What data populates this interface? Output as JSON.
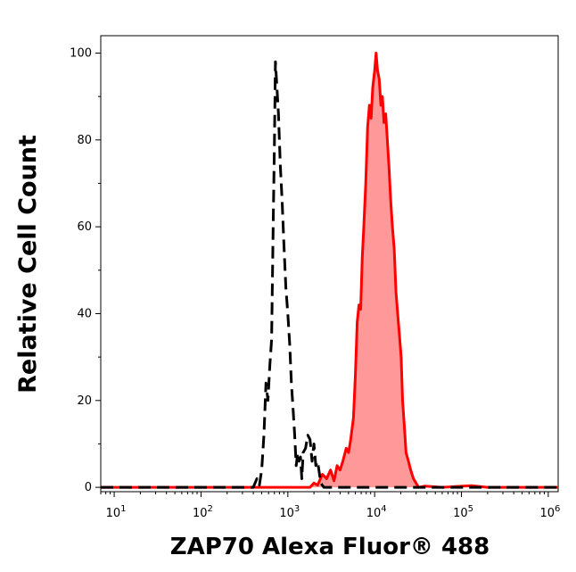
{
  "chart_data": {
    "type": "area",
    "title": "",
    "xlabel": "ZAP70 Alexa Fluor® 488",
    "ylabel": "Relative Cell Count",
    "x_scale": "log",
    "xlim": [
      7,
      1300000
    ],
    "ylim": [
      -1,
      104
    ],
    "y_ticks": [
      0,
      20,
      40,
      60,
      80,
      100
    ],
    "x_ticks": [
      {
        "value": 10,
        "base": "10",
        "exp": "1"
      },
      {
        "value": 100,
        "base": "10",
        "exp": "2"
      },
      {
        "value": 1000,
        "base": "10",
        "exp": "3"
      },
      {
        "value": 10000,
        "base": "10",
        "exp": "4"
      },
      {
        "value": 100000,
        "base": "10",
        "exp": "5"
      },
      {
        "value": 1000000,
        "base": "10",
        "exp": "6"
      }
    ],
    "grid": false,
    "series": [
      {
        "style": "dashed",
        "color": "#000000",
        "fill": "none",
        "points": [
          [
            7,
            0
          ],
          [
            300,
            0
          ],
          [
            400,
            0
          ],
          [
            440,
            2
          ],
          [
            470,
            0.5
          ],
          [
            500,
            4
          ],
          [
            530,
            12
          ],
          [
            560,
            24
          ],
          [
            590,
            20
          ],
          [
            620,
            28
          ],
          [
            650,
            34
          ],
          [
            680,
            62
          ],
          [
            700,
            78
          ],
          [
            720,
            98
          ],
          [
            750,
            92
          ],
          [
            780,
            86
          ],
          [
            820,
            74
          ],
          [
            860,
            66
          ],
          [
            900,
            56
          ],
          [
            950,
            46
          ],
          [
            1000,
            40
          ],
          [
            1050,
            33
          ],
          [
            1100,
            24
          ],
          [
            1150,
            18
          ],
          [
            1200,
            12
          ],
          [
            1250,
            5
          ],
          [
            1300,
            8
          ],
          [
            1350,
            6
          ],
          [
            1400,
            7
          ],
          [
            1450,
            2
          ],
          [
            1500,
            8
          ],
          [
            1600,
            9
          ],
          [
            1700,
            12
          ],
          [
            1800,
            11
          ],
          [
            1900,
            6
          ],
          [
            2000,
            10
          ],
          [
            2100,
            5
          ],
          [
            2200,
            6
          ],
          [
            2400,
            1
          ],
          [
            2600,
            0
          ],
          [
            7000,
            0
          ],
          [
            1300000,
            0
          ]
        ]
      },
      {
        "style": "solid",
        "color": "#ff0000",
        "fill": "#ff9999",
        "points": [
          [
            7,
            0
          ],
          [
            1800,
            0
          ],
          [
            2000,
            1
          ],
          [
            2200,
            0.5
          ],
          [
            2500,
            3
          ],
          [
            2800,
            2
          ],
          [
            3100,
            4
          ],
          [
            3400,
            1.5
          ],
          [
            3700,
            5
          ],
          [
            4000,
            4
          ],
          [
            4300,
            6
          ],
          [
            4700,
            9
          ],
          [
            5000,
            8
          ],
          [
            5300,
            11
          ],
          [
            5700,
            16
          ],
          [
            6000,
            26
          ],
          [
            6300,
            38
          ],
          [
            6600,
            42
          ],
          [
            6900,
            41
          ],
          [
            7200,
            53
          ],
          [
            7500,
            60
          ],
          [
            7900,
            70
          ],
          [
            8300,
            83
          ],
          [
            8700,
            88
          ],
          [
            9100,
            85
          ],
          [
            9500,
            92
          ],
          [
            10000,
            96
          ],
          [
            10400,
            100
          ],
          [
            10800,
            96
          ],
          [
            11300,
            94
          ],
          [
            11800,
            88
          ],
          [
            12300,
            90
          ],
          [
            12800,
            84
          ],
          [
            13400,
            86
          ],
          [
            14000,
            80
          ],
          [
            14600,
            74
          ],
          [
            15300,
            66
          ],
          [
            16000,
            60
          ],
          [
            16800,
            55
          ],
          [
            17600,
            45
          ],
          [
            18400,
            40
          ],
          [
            19300,
            35
          ],
          [
            20200,
            30
          ],
          [
            21000,
            20
          ],
          [
            22000,
            14
          ],
          [
            23000,
            8
          ],
          [
            24500,
            6
          ],
          [
            26000,
            4
          ],
          [
            28000,
            2
          ],
          [
            30000,
            1
          ],
          [
            32000,
            0
          ],
          [
            38000,
            0.3
          ],
          [
            60000,
            0
          ],
          [
            130000,
            0.4
          ],
          [
            200000,
            0
          ],
          [
            1300000,
            0
          ]
        ]
      }
    ]
  }
}
